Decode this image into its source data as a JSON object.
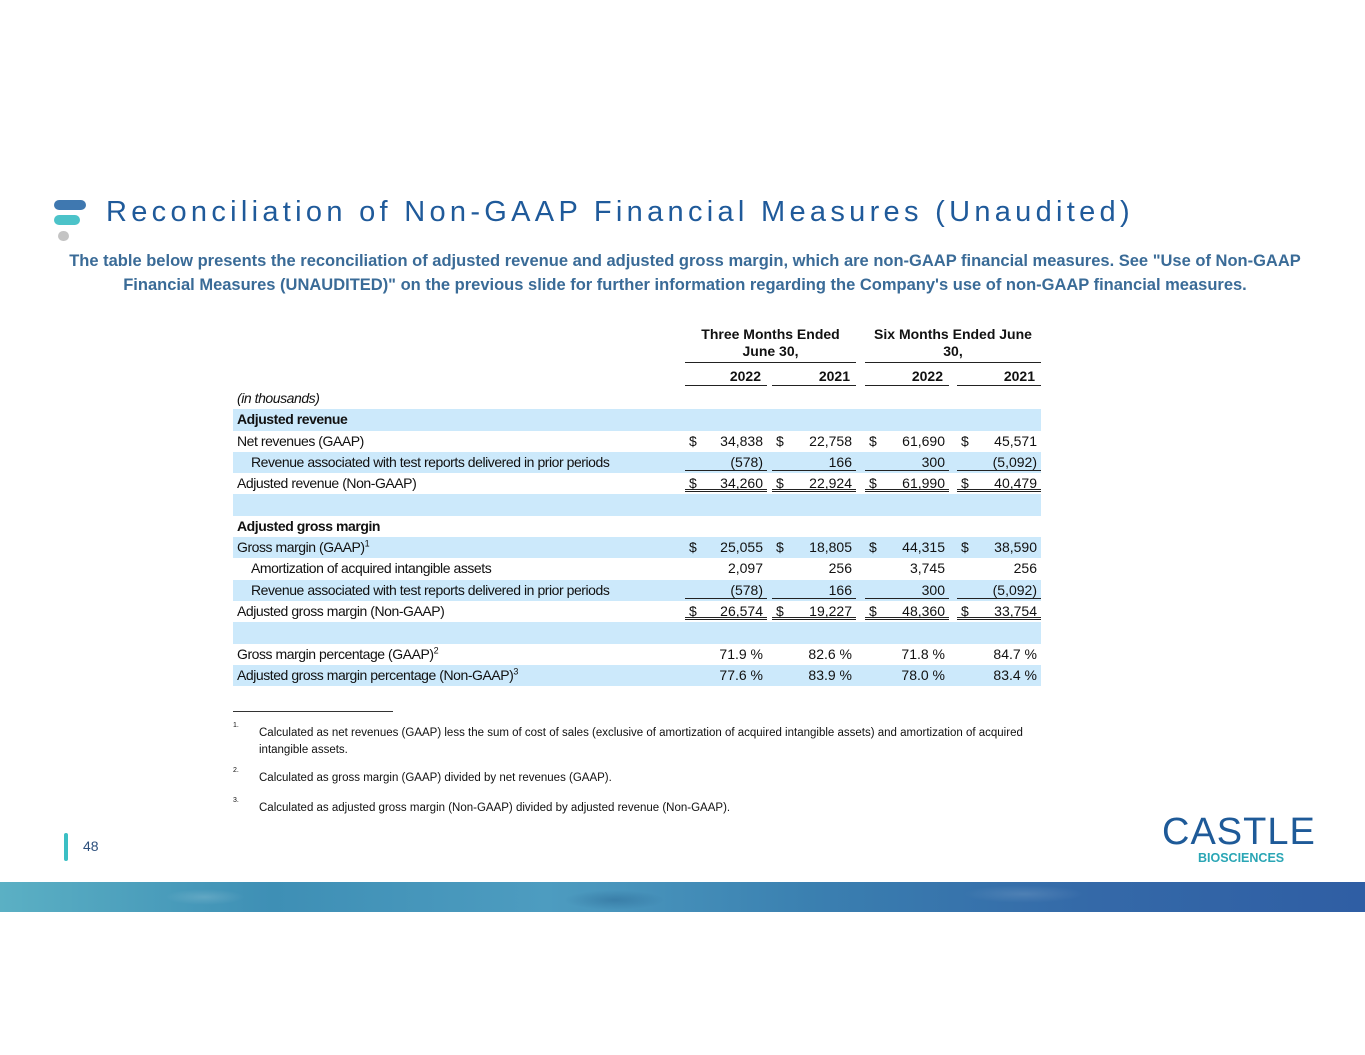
{
  "title": "Reconciliation of Non-GAAP Financial Measures (Unaudited)",
  "subtitle": "The table below presents the reconciliation of adjusted revenue and adjusted gross margin, which are non-GAAP financial measures. See \"Use of Non-GAAP Financial Measures (UNAUDITED)\" on the previous slide for further information regarding the Company's use of non-GAAP financial measures.",
  "table": {
    "groups": [
      "Three Months Ended June 30,",
      "Six Months Ended June 30,"
    ],
    "years": [
      "2022",
      "2021",
      "2022",
      "2021"
    ],
    "rows": [
      {
        "label": "(in thousands)",
        "values": [
          "",
          "",
          "",
          ""
        ]
      },
      {
        "label": "Adjusted revenue",
        "values": [
          "",
          "",
          "",
          ""
        ]
      },
      {
        "label": "Net revenues (GAAP)",
        "values": [
          "34,838",
          "22,758",
          "61,690",
          "45,571"
        ]
      },
      {
        "label": "Revenue associated with test reports delivered in prior periods",
        "values": [
          "(578)",
          "166",
          "300",
          "(5,092)"
        ]
      },
      {
        "label": "Adjusted revenue (Non-GAAP)",
        "values": [
          "34,260",
          "22,924",
          "61,990",
          "40,479"
        ]
      },
      {
        "label": "",
        "values": [
          "",
          "",
          "",
          ""
        ]
      },
      {
        "label": "Adjusted gross margin",
        "values": [
          "",
          "",
          "",
          ""
        ]
      },
      {
        "label": "Gross margin (GAAP)",
        "sup": "1",
        "values": [
          "25,055",
          "18,805",
          "44,315",
          "38,590"
        ]
      },
      {
        "label": "Amortization of acquired intangible assets",
        "values": [
          "2,097",
          "256",
          "3,745",
          "256"
        ]
      },
      {
        "label": "Revenue associated with test reports delivered in prior periods",
        "values": [
          "(578)",
          "166",
          "300",
          "(5,092)"
        ]
      },
      {
        "label": "Adjusted gross margin (Non-GAAP)",
        "values": [
          "26,574",
          "19,227",
          "48,360",
          "33,754"
        ]
      },
      {
        "label": "",
        "values": [
          "",
          "",
          "",
          ""
        ]
      },
      {
        "label": "Gross margin percentage (GAAP)",
        "sup": "2",
        "values": [
          "71.9 %",
          "82.6 %",
          "71.8 %",
          "84.7 %"
        ]
      },
      {
        "label": "Adjusted gross margin percentage (Non-GAAP)",
        "sup": "3",
        "values": [
          "77.6 %",
          "83.9 %",
          "78.0 %",
          "83.4 %"
        ]
      }
    ],
    "dollar": "$"
  },
  "footnotes": [
    {
      "n": "1.",
      "text": "Calculated as net revenues (GAAP) less the sum of cost of sales (exclusive of amortization of acquired intangible assets) and amortization of acquired intangible assets."
    },
    {
      "n": "2.",
      "text": "Calculated as gross margin (GAAP) divided by net revenues (GAAP)."
    },
    {
      "n": "3.",
      "text": "Calculated as adjusted gross margin (Non-GAAP) divided by adjusted revenue (Non-GAAP)."
    }
  ],
  "page_number": "48",
  "brand": {
    "name": "CASTLE",
    "sub": "BIOSCIENCES"
  },
  "colors": {
    "title": "#1f5a9a",
    "subtitle": "#3a6b97",
    "row_shade": "#cce9fb",
    "accent": "#3bbfc4"
  }
}
